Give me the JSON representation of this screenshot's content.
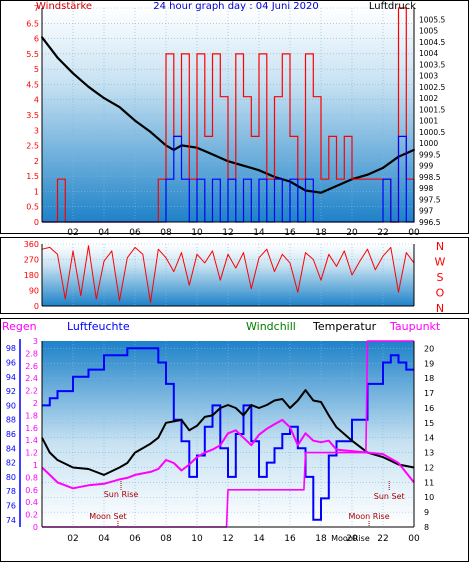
{
  "colors": {
    "wind": "#ff0000",
    "gust": "#0000ff",
    "pressure": "#000000",
    "winddir": "#ff0000",
    "humidity": "#0000ff",
    "temperature": "#000000",
    "dewpoint": "#ff00ff",
    "rain": "#ff00ff",
    "moon_marker": "#aa0000",
    "header_title": "#0000cc",
    "header_left": "#cc0000",
    "header_right": "#000000",
    "windchill": "#008000"
  },
  "chart_data": [
    {
      "type": "line",
      "title": "24 hour graph day : 04 Juni 2020",
      "left_label": "Windstärke",
      "right_label": "Luftdruck",
      "x_ticks": [
        "02",
        "04",
        "06",
        "08",
        "10",
        "12",
        "14",
        "16",
        "18",
        "20",
        "22",
        "00"
      ],
      "x_range_hours": [
        0,
        24
      ],
      "y_left_ticks": [
        "0",
        "0.5",
        "1",
        "1.5",
        "2",
        "2.5",
        "3",
        "3.5",
        "4",
        "4.5",
        "5",
        "5.5",
        "6",
        "6.5",
        "7"
      ],
      "y_left_range": [
        0,
        7
      ],
      "y_right_ticks": [
        "996.5",
        "997",
        "997.5",
        "998",
        "998.5",
        "999",
        "999.5",
        "1000",
        "1000.5",
        "1001",
        "1001.5",
        "1002",
        "1002.5",
        "1003",
        "1003.5",
        "1004",
        "1004.5",
        "1005",
        "1005.5"
      ],
      "y_right_range": [
        996.5,
        1006
      ],
      "series": [
        {
          "role": "pressure",
          "x": [
            0,
            1,
            2,
            3,
            4,
            5,
            6,
            7,
            7.5,
            8,
            8.5,
            9,
            10,
            11,
            12,
            13,
            14,
            15,
            16,
            17,
            18,
            19,
            20,
            21,
            22,
            23,
            24
          ],
          "values": [
            1004.7,
            1003.8,
            1003.1,
            1002.5,
            1002,
            1001.6,
            1001,
            1000.5,
            1000.2,
            999.9,
            999.7,
            999.9,
            999.8,
            999.5,
            999.2,
            999,
            998.8,
            998.5,
            998.3,
            997.9,
            997.8,
            998.1,
            998.4,
            998.6,
            998.9,
            999.4,
            999.7
          ]
        },
        {
          "role": "wind",
          "x": [
            0,
            1,
            1.5,
            2,
            7.4,
            7.5,
            8,
            8.5,
            9,
            9.5,
            10,
            10.5,
            11,
            11.5,
            12,
            12.5,
            13,
            13.5,
            14,
            14.5,
            15,
            15.5,
            16,
            16.5,
            17,
            17.5,
            18,
            18.5,
            19,
            19.5,
            20,
            20.5,
            21,
            21.5,
            22,
            22.5,
            23,
            23.5,
            24
          ],
          "values": [
            0,
            1.4,
            0,
            0,
            0,
            1.4,
            5.5,
            2.8,
            5.5,
            1.4,
            5.5,
            2.8,
            5.5,
            4.1,
            1.4,
            5.5,
            4.1,
            2.8,
            5.5,
            1.4,
            4.1,
            5.5,
            2.8,
            1.4,
            5.5,
            4.1,
            1.4,
            2.8,
            1.4,
            2.8,
            1.4,
            1.4,
            1.4,
            1.4,
            1.4,
            0,
            7,
            1.4,
            1.4
          ]
        },
        {
          "role": "gust",
          "x": [
            0,
            7.8,
            8,
            8.5,
            9,
            9.5,
            10,
            10.5,
            11,
            11.5,
            12,
            12.5,
            13,
            13.5,
            14,
            14.5,
            15,
            15.5,
            16,
            16.5,
            17,
            17.5,
            18,
            21.8,
            22,
            22.5,
            23,
            23.5,
            24
          ],
          "values": [
            0,
            0,
            1.4,
            2.8,
            1.4,
            0,
            1.4,
            0,
            1.4,
            0,
            1.4,
            0,
            1.4,
            0,
            1.4,
            0,
            1.4,
            0,
            1.4,
            0,
            1.4,
            0,
            0,
            0,
            1.4,
            0,
            2.8,
            0,
            1.4
          ]
        }
      ]
    },
    {
      "type": "line",
      "y_ticks": [
        "0",
        "90",
        "180",
        "270",
        "360"
      ],
      "y_range": [
        0,
        360
      ],
      "side_labels": [
        "N",
        "W",
        "S",
        "O",
        "N"
      ],
      "series": [
        {
          "role": "winddir",
          "x": [
            0,
            0.5,
            1,
            1.5,
            2,
            2.5,
            3,
            3.5,
            4,
            4.5,
            5,
            5.5,
            6,
            6.5,
            7,
            7.5,
            8,
            8.5,
            9,
            9.5,
            10,
            10.5,
            11,
            11.5,
            12,
            12.5,
            13,
            13.5,
            14,
            14.5,
            15,
            15.5,
            16,
            16.5,
            17,
            17.5,
            18,
            18.5,
            19,
            19.5,
            20,
            20.5,
            21,
            21.5,
            22,
            22.5,
            23,
            23.5,
            24
          ],
          "values": [
            330,
            340,
            300,
            40,
            320,
            60,
            350,
            40,
            260,
            320,
            30,
            280,
            340,
            300,
            20,
            330,
            280,
            200,
            310,
            120,
            300,
            250,
            320,
            150,
            300,
            220,
            310,
            100,
            280,
            330,
            200,
            300,
            250,
            80,
            310,
            270,
            150,
            300,
            230,
            320,
            180,
            260,
            330,
            210,
            290,
            340,
            80,
            310,
            250
          ]
        }
      ]
    },
    {
      "type": "line",
      "labels": {
        "rain": "Regen",
        "humidity": "Luftfeuchte",
        "windchill": "Windchill",
        "temperature": "Temperatur",
        "dewpoint": "Taupunkt"
      },
      "left_rain_ticks": [
        "0",
        "0.2",
        "0.4",
        "0.6",
        "0.8",
        "1",
        "1.2",
        "1.4",
        "1.6",
        "1.8",
        "2",
        "2.2",
        "2.4",
        "2.6",
        "2.8",
        "3"
      ],
      "rain_range": [
        0,
        3
      ],
      "left_hum_ticks": [
        "74",
        "76",
        "78",
        "80",
        "82",
        "84",
        "86",
        "88",
        "90",
        "92",
        "94",
        "96",
        "98"
      ],
      "hum_range": [
        73,
        99
      ],
      "right_temp_ticks": [
        "8",
        "9",
        "10",
        "11",
        "12",
        "13",
        "14",
        "15",
        "16",
        "17",
        "18",
        "19",
        "20"
      ],
      "temp_range": [
        8,
        20.5
      ],
      "x_ticks": [
        "02",
        "04",
        "06",
        "08",
        "10",
        "12",
        "14",
        "16",
        "18",
        "20",
        "22",
        "00"
      ],
      "annotations": {
        "sun_rise": "Sun Rise",
        "sun_set": "Sun Set",
        "moon_set": "Moon Set",
        "moon_rise": "Moon Rise",
        "moon_overlap": "MoonRise"
      },
      "series": [
        {
          "role": "humidity",
          "x": [
            0,
            0.5,
            1,
            2,
            3,
            4,
            5,
            5.5,
            6,
            7,
            7.5,
            8,
            8.5,
            9,
            9.5,
            10,
            10.5,
            11,
            11.5,
            12,
            12.5,
            13,
            13.5,
            14,
            14.5,
            15,
            15.5,
            16,
            16.5,
            17,
            17.5,
            18,
            18.5,
            19,
            20,
            21,
            22,
            22.5,
            23,
            23.5,
            24
          ],
          "values": [
            90,
            91,
            92,
            94,
            95,
            97,
            97,
            98,
            98,
            98,
            96,
            93,
            88,
            85,
            80,
            83,
            87,
            90,
            84,
            80,
            86,
            90,
            85,
            80,
            82,
            84,
            86,
            87,
            84,
            80,
            74,
            77,
            83,
            85,
            88,
            93,
            96,
            97,
            96,
            95,
            95
          ]
        },
        {
          "role": "temperature",
          "x": [
            0,
            0.5,
            1,
            2,
            3,
            4,
            5,
            5.5,
            6,
            7,
            7.5,
            8,
            8.5,
            9,
            9.5,
            10,
            10.5,
            11,
            11.5,
            12,
            12.5,
            13,
            13.5,
            14,
            14.5,
            15,
            15.5,
            16,
            16.5,
            17,
            17.5,
            18,
            18.5,
            19,
            20,
            21,
            22,
            23,
            24
          ],
          "values": [
            14,
            13,
            12.5,
            12,
            11.9,
            11.5,
            12,
            12.3,
            13,
            13.6,
            14,
            15,
            15.1,
            15.2,
            14.5,
            14.8,
            15.4,
            15.5,
            16,
            16.2,
            16,
            15.5,
            16.2,
            16,
            16.2,
            16.5,
            16.6,
            16,
            16.5,
            17.2,
            16.5,
            16.4,
            15.5,
            14.7,
            13.8,
            13,
            12.7,
            12.2,
            12
          ]
        },
        {
          "role": "dewpoint",
          "x": [
            0,
            0.5,
            1,
            2,
            3,
            4,
            5,
            5.5,
            6,
            7,
            7.5,
            8,
            8.5,
            9,
            9.5,
            10,
            10.5,
            11,
            11.5,
            12,
            12.5,
            13,
            13.5,
            14,
            14.5,
            15,
            15.5,
            16,
            16.5,
            17,
            17.5,
            18,
            18.5,
            19,
            20,
            21,
            22,
            23,
            24
          ],
          "values": [
            12,
            11.5,
            11,
            10.6,
            10.8,
            10.9,
            11.2,
            11.3,
            11.5,
            11.7,
            11.9,
            12.5,
            12.3,
            11.8,
            12.2,
            12.7,
            13,
            13.2,
            13.5,
            14.3,
            14.5,
            14,
            13.5,
            14.2,
            14.6,
            14.9,
            15.2,
            14.7,
            13.5,
            14.3,
            13.8,
            13.7,
            13.8,
            13.2,
            13.1,
            13,
            12.9,
            12.3,
            11
          ]
        },
        {
          "role": "rain",
          "x": [
            0,
            4.9,
            5,
            11.9,
            12,
            13.9,
            14,
            16.9,
            17,
            19,
            20,
            20.9,
            21,
            24
          ],
          "values": [
            0,
            0,
            0,
            0,
            0.6,
            0.6,
            0.6,
            0.6,
            1.2,
            1.2,
            1.2,
            1.2,
            3,
            3
          ]
        }
      ]
    }
  ]
}
